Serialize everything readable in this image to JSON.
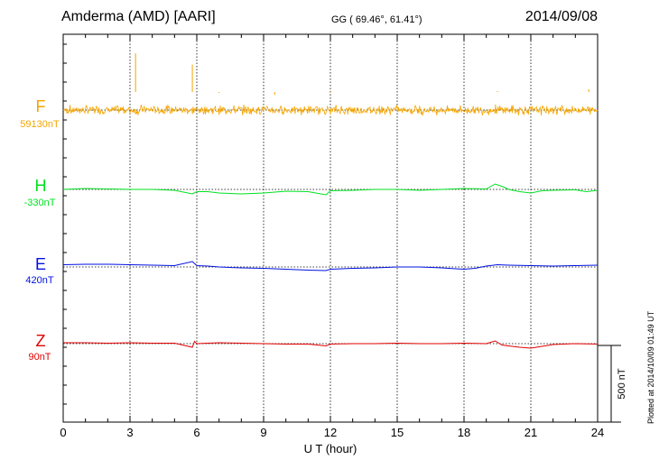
{
  "header": {
    "station": "Amderma (AMD)  [AARI]",
    "coords": "GG ( 69.46°,  61.41°)",
    "date": "2014/09/08"
  },
  "plotted_note": "Plotted at 2014/10/09 01:49 UT",
  "chart_data": {
    "type": "line",
    "xlabel": "U T (hour)",
    "xlim": [
      0,
      24
    ],
    "xticks": [
      0,
      3,
      6,
      9,
      12,
      15,
      18,
      21,
      24
    ],
    "scale_bar_label": "500 nT",
    "series": [
      {
        "name": "F",
        "baseline": "59130nT",
        "color": "#f5a500",
        "points": [
          [
            0,
            30
          ],
          [
            0.5,
            35
          ],
          [
            1,
            32
          ],
          [
            1.5,
            40
          ],
          [
            2,
            33
          ],
          [
            2.5,
            36
          ],
          [
            3,
            31
          ],
          [
            3.5,
            38
          ],
          [
            4,
            30
          ],
          [
            4.5,
            34
          ],
          [
            5,
            36
          ],
          [
            5.5,
            32
          ],
          [
            6,
            35
          ],
          [
            6.5,
            33
          ],
          [
            7,
            30
          ],
          [
            7.5,
            36
          ],
          [
            8,
            32
          ],
          [
            8.5,
            34
          ],
          [
            9,
            30
          ],
          [
            9.5,
            33
          ],
          [
            10,
            35
          ],
          [
            10.5,
            31
          ],
          [
            11,
            34
          ],
          [
            11.5,
            30
          ],
          [
            12,
            32
          ],
          [
            12.5,
            36
          ],
          [
            13,
            33
          ],
          [
            13.5,
            31
          ],
          [
            14,
            35
          ],
          [
            14.5,
            32
          ],
          [
            15,
            34
          ],
          [
            15.5,
            30
          ],
          [
            16,
            36
          ],
          [
            16.5,
            32
          ],
          [
            17,
            34
          ],
          [
            17.5,
            31
          ],
          [
            18,
            33
          ],
          [
            18.5,
            30
          ],
          [
            19,
            35
          ],
          [
            19.5,
            38
          ],
          [
            20,
            32
          ],
          [
            20.5,
            36
          ],
          [
            21,
            30
          ],
          [
            21.5,
            34
          ],
          [
            22,
            32
          ],
          [
            22.5,
            35
          ],
          [
            23,
            31
          ],
          [
            23.5,
            34
          ],
          [
            24,
            33
          ]
        ],
        "spikes": [
          [
            3.25,
            150
          ],
          [
            5.8,
            120
          ],
          [
            7.0,
            45
          ],
          [
            9.5,
            40
          ],
          [
            12.0,
            45
          ],
          [
            19.5,
            50
          ],
          [
            23.6,
            55
          ]
        ]
      },
      {
        "name": "H",
        "baseline": "-330nT",
        "color": "#00e020",
        "points": [
          [
            0,
            0
          ],
          [
            1,
            2
          ],
          [
            2,
            1
          ],
          [
            3,
            0
          ],
          [
            4,
            0
          ],
          [
            5,
            -2
          ],
          [
            5.8,
            -10
          ],
          [
            6.0,
            -5
          ],
          [
            6.5,
            -5
          ],
          [
            7,
            -8
          ],
          [
            8,
            -10
          ],
          [
            9,
            -8
          ],
          [
            10,
            -4
          ],
          [
            11,
            -5
          ],
          [
            11.8,
            -12
          ],
          [
            12,
            -3
          ],
          [
            13,
            -2
          ],
          [
            14,
            0
          ],
          [
            15,
            0
          ],
          [
            16,
            -2
          ],
          [
            17,
            0
          ],
          [
            18,
            2
          ],
          [
            19,
            1
          ],
          [
            19.4,
            12
          ],
          [
            19.8,
            5
          ],
          [
            20,
            0
          ],
          [
            20.5,
            -5
          ],
          [
            21,
            -8
          ],
          [
            21.5,
            -3
          ],
          [
            22,
            -2
          ],
          [
            23,
            -1
          ],
          [
            23.5,
            -5
          ],
          [
            24,
            -2
          ]
        ]
      },
      {
        "name": "E",
        "baseline": "420nT",
        "color": "#0010e0",
        "points": [
          [
            0,
            5
          ],
          [
            1,
            6
          ],
          [
            2,
            6
          ],
          [
            3,
            5
          ],
          [
            4,
            4
          ],
          [
            5,
            3
          ],
          [
            5.8,
            12
          ],
          [
            6.0,
            3
          ],
          [
            6.5,
            2
          ],
          [
            7,
            0
          ],
          [
            8,
            -2
          ],
          [
            9,
            -3
          ],
          [
            10,
            -5
          ],
          [
            11,
            -7
          ],
          [
            11.8,
            -8
          ],
          [
            12,
            -5
          ],
          [
            13,
            -3
          ],
          [
            14,
            -2
          ],
          [
            15,
            0
          ],
          [
            16,
            0
          ],
          [
            17,
            -2
          ],
          [
            18,
            -5
          ],
          [
            18.5,
            -3
          ],
          [
            19,
            2
          ],
          [
            19.5,
            5
          ],
          [
            20,
            4
          ],
          [
            21,
            3
          ],
          [
            22,
            2
          ],
          [
            23,
            3
          ],
          [
            24,
            4
          ]
        ]
      },
      {
        "name": "Z",
        "baseline": "90nT",
        "color": "#e00000",
        "points": [
          [
            0,
            2
          ],
          [
            1,
            2
          ],
          [
            2,
            1
          ],
          [
            3,
            2
          ],
          [
            4,
            1
          ],
          [
            5,
            1
          ],
          [
            5.8,
            -8
          ],
          [
            5.9,
            5
          ],
          [
            6.0,
            0
          ],
          [
            6.5,
            1
          ],
          [
            7,
            2
          ],
          [
            8,
            1
          ],
          [
            9,
            0
          ],
          [
            10,
            -1
          ],
          [
            11,
            -1
          ],
          [
            11.8,
            -5
          ],
          [
            12,
            -1
          ],
          [
            13,
            0
          ],
          [
            14,
            0
          ],
          [
            15,
            1
          ],
          [
            16,
            0
          ],
          [
            17,
            0
          ],
          [
            18,
            1
          ],
          [
            19,
            0
          ],
          [
            19.4,
            6
          ],
          [
            19.7,
            -3
          ],
          [
            20,
            -5
          ],
          [
            20.5,
            -8
          ],
          [
            21,
            -10
          ],
          [
            21.5,
            -6
          ],
          [
            22,
            -2
          ],
          [
            23,
            0
          ],
          [
            24,
            -1
          ]
        ]
      }
    ]
  }
}
